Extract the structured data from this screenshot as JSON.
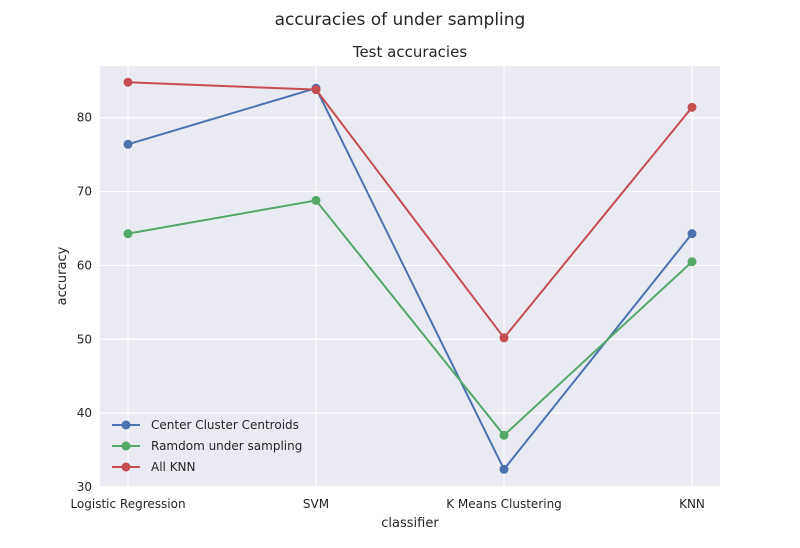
{
  "figure": {
    "suptitle": "accuracies of under sampling"
  },
  "chart_data": {
    "type": "line",
    "title": "Test accuracies",
    "xlabel": "classifier",
    "ylabel": "accuracy",
    "categories": [
      "Logistic Regression",
      "SVM",
      "K Means Clustering",
      "KNN"
    ],
    "ylim": [
      30,
      87
    ],
    "yticks": [
      30,
      40,
      50,
      60,
      70,
      80
    ],
    "grid": true,
    "legend_position": "lower-left",
    "series": [
      {
        "name": "Center Cluster Centroids",
        "color": "#4c72b0",
        "values": [
          76.4,
          84.0,
          32.4,
          64.3
        ]
      },
      {
        "name": "Ramdom under sampling",
        "color": "#55a868",
        "values": [
          64.3,
          68.8,
          37.0,
          60.5
        ]
      },
      {
        "name": "All KNN",
        "color": "#c44e52",
        "values": [
          84.8,
          83.8,
          50.2,
          81.4
        ]
      }
    ]
  }
}
